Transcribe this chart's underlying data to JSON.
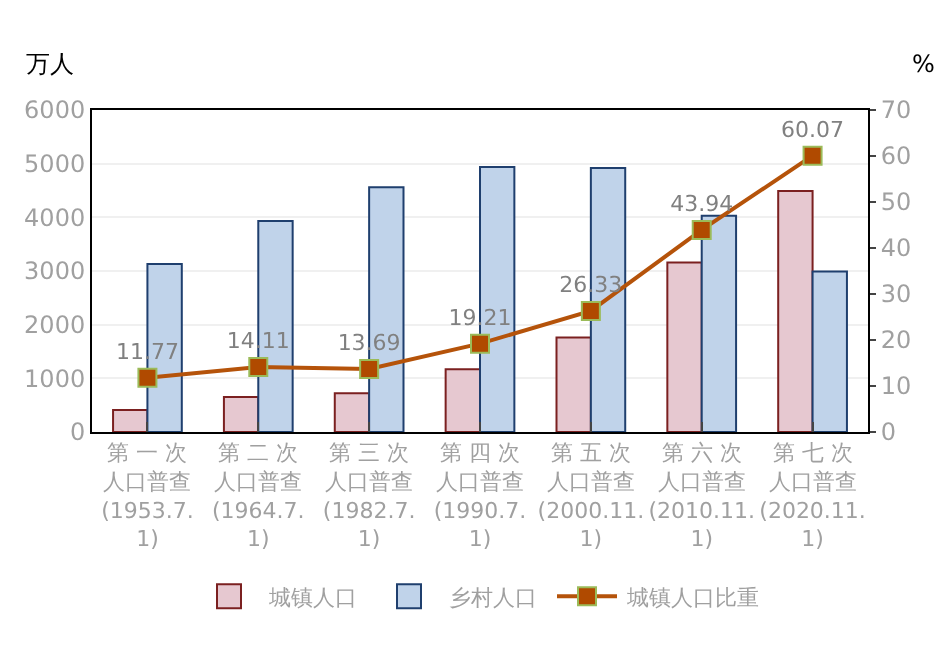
{
  "chart_data": {
    "type": "bar",
    "ylabel": "万人",
    "y2label": "%",
    "categories": [
      "第 一 次人口普查\n(1953.7.\n1)",
      "第 二 次人口普查\n(1964.7.\n1)",
      "第 三 次人口普查\n(1982.7.\n1)",
      "第 四 次人口普查\n(1990.7.\n1)",
      "第 五 次人口普查\n(2000.11.\n1)",
      "第 六 次人口普查\n(2010.11.\n1)",
      "第 七 次人口普查\n(2020.11.\n1)"
    ],
    "series": [
      {
        "name": "城镇人口",
        "color": "#e6c8d0",
        "values": [
          410,
          650,
          720,
          1170,
          1760,
          3160,
          4490
        ]
      },
      {
        "name": "乡村人口",
        "color": "#c0d3ea",
        "values": [
          3130,
          3930,
          4560,
          4940,
          4920,
          4030,
          2990
        ]
      },
      {
        "name": "城镇人口比重",
        "type": "line",
        "axis": "y2",
        "color": "#b5530a",
        "marker": "square",
        "data_labels": true,
        "values": [
          11.77,
          14.11,
          13.69,
          19.21,
          26.33,
          43.94,
          60.07
        ]
      }
    ],
    "ylim": [
      0,
      6000
    ],
    "yticks": [
      0,
      1000,
      2000,
      3000,
      4000,
      5000,
      6000
    ],
    "y2lim": [
      0,
      70
    ],
    "y2ticks": [
      0,
      10,
      20,
      30,
      40,
      50,
      60,
      70
    ],
    "grid": "y",
    "legend": "bottom"
  }
}
